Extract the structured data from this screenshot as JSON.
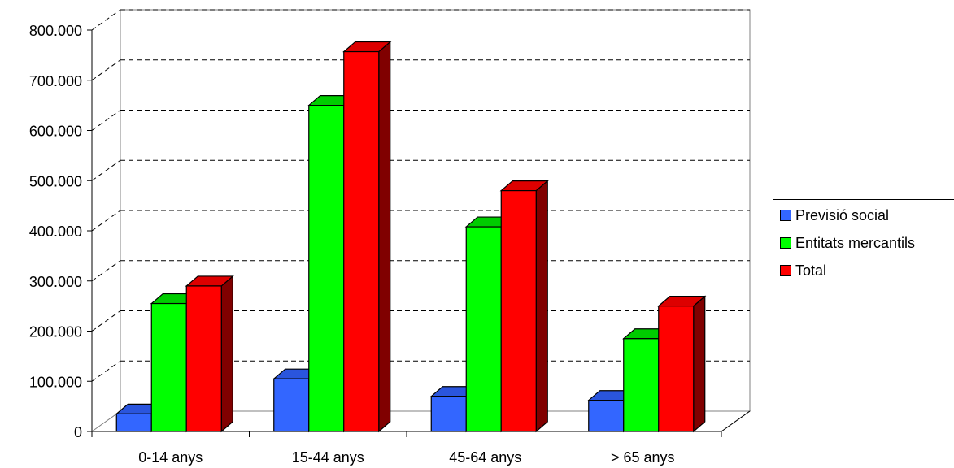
{
  "chart_data": {
    "type": "bar",
    "categories": [
      "0-14 anys",
      "15-44 anys",
      "45-64 anys",
      "> 65 anys"
    ],
    "series": [
      {
        "name": "Previsió social",
        "values": [
          35000,
          105000,
          70000,
          62000
        ],
        "color": "#3366ff",
        "top_color": "#2a55dd",
        "side_color": "#1a2e80"
      },
      {
        "name": "Entitats mercantils",
        "values": [
          255000,
          650000,
          408000,
          185000
        ],
        "color": "#00ff00",
        "top_color": "#00cc00",
        "side_color": "#007a00"
      },
      {
        "name": "Total",
        "values": [
          290000,
          757000,
          480000,
          250000
        ],
        "color": "#ff0000",
        "top_color": "#dd0000",
        "side_color": "#800000"
      }
    ],
    "y_ticks": [
      "0",
      "100.000",
      "200.000",
      "300.000",
      "400.000",
      "500.000",
      "600.000",
      "700.000",
      "800.000"
    ],
    "ylim": [
      0,
      800000
    ],
    "grid": true,
    "legend_position": "right",
    "title": "",
    "xlabel": "",
    "ylabel": ""
  }
}
